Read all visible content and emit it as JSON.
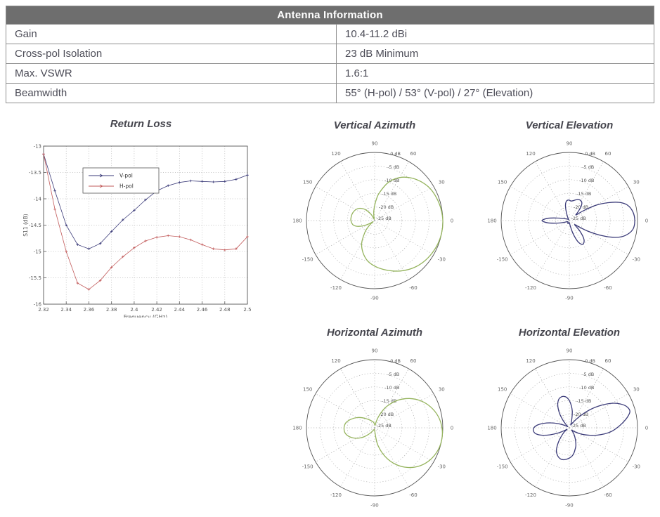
{
  "table": {
    "title": "Antenna Information",
    "rows": [
      {
        "label": "Gain",
        "value": "10.4-11.2 dBi"
      },
      {
        "label": "Cross-pol Isolation",
        "value": "23 dB Minimum"
      },
      {
        "label": "Max. VSWR",
        "value": "1.6:1"
      },
      {
        "label": "Beamwidth",
        "value": "55° (H-pol) / 53° (V-pol) / 27° (Elevation)"
      }
    ]
  },
  "colors": {
    "header_bg": "#6e6e6e",
    "header_text": "#ffffff",
    "table_text": "#4c4c57",
    "table_border": "#8f8f8f",
    "title_text": "#46464e",
    "axis": "#555555",
    "grid": "#b3b3b3",
    "tick_text": "#555555",
    "vpol_navy": "#3a3a78",
    "hpol_red": "#c25b5b",
    "pattern_green": "#94b35c"
  },
  "polar_axes": {
    "angle_labels": [
      [
        0,
        "0"
      ],
      [
        30,
        "30"
      ],
      [
        60,
        "60"
      ],
      [
        90,
        "90"
      ],
      [
        120,
        "120"
      ],
      [
        150,
        "150"
      ],
      [
        180,
        "180"
      ],
      [
        210,
        "-150"
      ],
      [
        240,
        "-120"
      ],
      [
        270,
        "-90"
      ],
      [
        300,
        "-60"
      ],
      [
        330,
        "-30"
      ]
    ],
    "radial_labels": [
      "0 dB",
      "-5 dB",
      "-10 dB",
      "-15 dB",
      "-20 dB",
      "-25 dB"
    ],
    "rmax_db": 0,
    "rmin_db": -25,
    "grid": "dotted"
  },
  "chart_data": [
    {
      "type": "line",
      "title": "Return Loss",
      "xlabel": "Frequency (GHz)",
      "ylabel": "S11 (dB)",
      "xlim": [
        2.32,
        2.5
      ],
      "ylim": [
        -16,
        -13
      ],
      "xticks": [
        2.32,
        2.34,
        2.36,
        2.38,
        2.4,
        2.42,
        2.44,
        2.46,
        2.48,
        2.5
      ],
      "yticks": [
        -13,
        -13.5,
        -14,
        -14.5,
        -15,
        -15.5,
        -16
      ],
      "grid": true,
      "legend_position": "upper-left-inside",
      "series": [
        {
          "name": "V-pol",
          "color": "#3a3a78",
          "x": [
            2.32,
            2.33,
            2.34,
            2.35,
            2.36,
            2.37,
            2.38,
            2.39,
            2.4,
            2.41,
            2.42,
            2.43,
            2.44,
            2.45,
            2.46,
            2.47,
            2.48,
            2.49,
            2.5
          ],
          "y": [
            -13.15,
            -13.85,
            -14.5,
            -14.87,
            -14.95,
            -14.85,
            -14.62,
            -14.4,
            -14.22,
            -14.02,
            -13.85,
            -13.75,
            -13.69,
            -13.66,
            -13.67,
            -13.68,
            -13.67,
            -13.63,
            -13.55
          ]
        },
        {
          "name": "H-pol",
          "color": "#c25b5b",
          "x": [
            2.32,
            2.33,
            2.34,
            2.35,
            2.36,
            2.37,
            2.38,
            2.39,
            2.4,
            2.41,
            2.42,
            2.43,
            2.44,
            2.45,
            2.46,
            2.47,
            2.48,
            2.49,
            2.5
          ],
          "y": [
            -13.15,
            -14.2,
            -15.0,
            -15.6,
            -15.72,
            -15.55,
            -15.3,
            -15.1,
            -14.93,
            -14.8,
            -14.73,
            -14.7,
            -14.72,
            -14.78,
            -14.87,
            -14.95,
            -14.97,
            -14.95,
            -14.72
          ]
        }
      ]
    },
    {
      "type": "polar",
      "title": "Vertical Azimuth",
      "color": "#94b35c",
      "units": "dB",
      "points": [
        [
          0,
          0
        ],
        [
          10,
          -0.3
        ],
        [
          20,
          -0.8
        ],
        [
          30,
          -1.5
        ],
        [
          40,
          -2.8
        ],
        [
          50,
          -4.5
        ],
        [
          60,
          -6.8
        ],
        [
          70,
          -10
        ],
        [
          80,
          -14.5
        ],
        [
          85,
          -17
        ],
        [
          90,
          -19.5
        ],
        [
          95,
          -21.5
        ],
        [
          100,
          -23.3
        ],
        [
          105,
          -24.3
        ],
        [
          110,
          -24.5
        ],
        [
          115,
          -23.8
        ],
        [
          120,
          -22.3
        ],
        [
          130,
          -19.8
        ],
        [
          140,
          -18
        ],
        [
          150,
          -17
        ],
        [
          160,
          -16.5
        ],
        [
          170,
          -16.3
        ],
        [
          180,
          -16.3
        ],
        [
          190,
          -16.8
        ],
        [
          195,
          -17.5
        ],
        [
          200,
          -18.8
        ],
        [
          205,
          -20.5
        ],
        [
          210,
          -22.5
        ],
        [
          213,
          -23.8
        ],
        [
          216,
          -24.3
        ],
        [
          220,
          -23.3
        ],
        [
          225,
          -21.5
        ],
        [
          230,
          -19.5
        ],
        [
          240,
          -15.5
        ],
        [
          250,
          -12.5
        ],
        [
          260,
          -10
        ],
        [
          270,
          -8.3
        ],
        [
          280,
          -6.8
        ],
        [
          290,
          -5.3
        ],
        [
          300,
          -3.8
        ],
        [
          310,
          -2.5
        ],
        [
          320,
          -1.5
        ],
        [
          330,
          -0.8
        ],
        [
          340,
          -0.3
        ],
        [
          350,
          0
        ]
      ]
    },
    {
      "type": "polar",
      "title": "Vertical Elevation",
      "color": "#3a3a78",
      "units": "dB",
      "points": [
        [
          0,
          -1
        ],
        [
          8,
          -1.5
        ],
        [
          15,
          -3
        ],
        [
          20,
          -5.5
        ],
        [
          25,
          -9.5
        ],
        [
          30,
          -13.8
        ],
        [
          35,
          -18.8
        ],
        [
          40,
          -21.8
        ],
        [
          45,
          -20.5
        ],
        [
          50,
          -18.3
        ],
        [
          55,
          -17
        ],
        [
          62,
          -16.5
        ],
        [
          70,
          -16.8
        ],
        [
          78,
          -17.5
        ],
        [
          85,
          -17.8
        ],
        [
          90,
          -17.5
        ],
        [
          95,
          -17.5
        ],
        [
          100,
          -18
        ],
        [
          105,
          -19.5
        ],
        [
          110,
          -21.8
        ],
        [
          115,
          -23.5
        ],
        [
          125,
          -24.5
        ],
        [
          135,
          -24.3
        ],
        [
          145,
          -24
        ],
        [
          155,
          -23.5
        ],
        [
          162,
          -22.5
        ],
        [
          168,
          -20.5
        ],
        [
          174,
          -17
        ],
        [
          180,
          -15
        ],
        [
          186,
          -17
        ],
        [
          192,
          -20.5
        ],
        [
          198,
          -22.8
        ],
        [
          205,
          -24
        ],
        [
          215,
          -24.3
        ],
        [
          225,
          -24.3
        ],
        [
          235,
          -24
        ],
        [
          245,
          -23.8
        ],
        [
          255,
          -24
        ],
        [
          265,
          -24.3
        ],
        [
          275,
          -24
        ],
        [
          281,
          -22.5
        ],
        [
          287,
          -19.5
        ],
        [
          293,
          -16.3
        ],
        [
          300,
          -15
        ],
        [
          308,
          -16.3
        ],
        [
          315,
          -19.5
        ],
        [
          322,
          -22.5
        ],
        [
          326,
          -21.3
        ],
        [
          330,
          -17.5
        ],
        [
          335,
          -12
        ],
        [
          340,
          -7
        ],
        [
          345,
          -3.8
        ],
        [
          352,
          -1.5
        ]
      ]
    },
    {
      "type": "polar",
      "title": "Horizontal Azimuth",
      "color": "#94b35c",
      "units": "dB",
      "points": [
        [
          0,
          -0.3
        ],
        [
          10,
          -1.3
        ],
        [
          20,
          -3
        ],
        [
          30,
          -5.3
        ],
        [
          40,
          -8.3
        ],
        [
          50,
          -11.8
        ],
        [
          60,
          -15.8
        ],
        [
          65,
          -18
        ],
        [
          70,
          -20.3
        ],
        [
          75,
          -22.5
        ],
        [
          80,
          -24
        ],
        [
          90,
          -23.8
        ],
        [
          100,
          -23
        ],
        [
          110,
          -22.5
        ],
        [
          120,
          -21.8
        ],
        [
          130,
          -20.8
        ],
        [
          140,
          -19.3
        ],
        [
          150,
          -17.5
        ],
        [
          160,
          -15.8
        ],
        [
          170,
          -14.3
        ],
        [
          180,
          -13.8
        ],
        [
          190,
          -14
        ],
        [
          200,
          -15.3
        ],
        [
          210,
          -17.3
        ],
        [
          220,
          -19.8
        ],
        [
          230,
          -22.3
        ],
        [
          240,
          -23.8
        ],
        [
          250,
          -24.3
        ],
        [
          260,
          -24.3
        ],
        [
          270,
          -24
        ],
        [
          280,
          -18.8
        ],
        [
          290,
          -13.8
        ],
        [
          300,
          -9.5
        ],
        [
          310,
          -6
        ],
        [
          320,
          -3.3
        ],
        [
          330,
          -1.5
        ],
        [
          340,
          -0.4
        ],
        [
          350,
          0
        ]
      ]
    },
    {
      "type": "polar",
      "title": "Horizontal Elevation",
      "color": "#3a3a78",
      "units": "dB",
      "points": [
        [
          0,
          -7.5
        ],
        [
          5,
          -5.5
        ],
        [
          10,
          -3.5
        ],
        [
          15,
          -2
        ],
        [
          20,
          -2.5
        ],
        [
          25,
          -4.3
        ],
        [
          30,
          -7
        ],
        [
          35,
          -10.5
        ],
        [
          40,
          -14
        ],
        [
          45,
          -17.5
        ],
        [
          50,
          -20.5
        ],
        [
          55,
          -22.5
        ],
        [
          60,
          -23.5
        ],
        [
          65,
          -23.8
        ],
        [
          70,
          -23
        ],
        [
          75,
          -21.3
        ],
        [
          80,
          -18.8
        ],
        [
          85,
          -16.8
        ],
        [
          90,
          -15
        ],
        [
          95,
          -13.8
        ],
        [
          100,
          -13.3
        ],
        [
          105,
          -13.3
        ],
        [
          110,
          -13.8
        ],
        [
          115,
          -15
        ],
        [
          120,
          -16.8
        ],
        [
          125,
          -19
        ],
        [
          130,
          -21.3
        ],
        [
          135,
          -23
        ],
        [
          140,
          -24
        ],
        [
          145,
          -24.3
        ],
        [
          150,
          -23.8
        ],
        [
          155,
          -22.5
        ],
        [
          160,
          -20.5
        ],
        [
          165,
          -18
        ],
        [
          170,
          -15.5
        ],
        [
          175,
          -13.3
        ],
        [
          180,
          -12
        ],
        [
          185,
          -11.8
        ],
        [
          190,
          -12.5
        ],
        [
          195,
          -14.5
        ],
        [
          200,
          -17.5
        ],
        [
          205,
          -20.5
        ],
        [
          210,
          -23
        ],
        [
          215,
          -24
        ],
        [
          220,
          -22.5
        ],
        [
          225,
          -21.3
        ],
        [
          230,
          -19.5
        ],
        [
          235,
          -17.5
        ],
        [
          240,
          -15.5
        ],
        [
          245,
          -14.3
        ],
        [
          250,
          -13.5
        ],
        [
          255,
          -13.1
        ],
        [
          260,
          -13.1
        ],
        [
          265,
          -13.4
        ],
        [
          270,
          -13.9
        ],
        [
          275,
          -14.5
        ],
        [
          280,
          -15.5
        ],
        [
          285,
          -16.8
        ],
        [
          290,
          -18
        ],
        [
          295,
          -19.5
        ],
        [
          300,
          -20.8
        ],
        [
          305,
          -22
        ],
        [
          310,
          -23
        ],
        [
          315,
          -23.8
        ],
        [
          320,
          -23.3
        ],
        [
          325,
          -22.3
        ],
        [
          330,
          -20.8
        ],
        [
          335,
          -19
        ],
        [
          340,
          -17
        ],
        [
          345,
          -14.5
        ],
        [
          350,
          -12
        ],
        [
          355,
          -9.5
        ]
      ]
    }
  ]
}
